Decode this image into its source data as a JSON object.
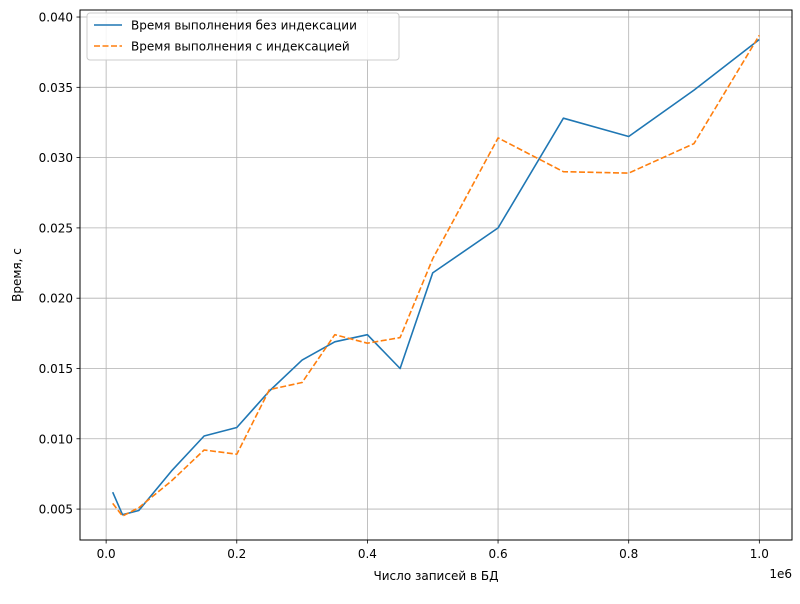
{
  "chart_data": {
    "type": "line",
    "title": "",
    "xlabel": "Число записей в БД",
    "ylabel": "Время, с",
    "x_offset_text": "1e6",
    "xlim": [
      -40000,
      1050000
    ],
    "ylim": [
      0.0028,
      0.0405
    ],
    "grid": true,
    "legend_position": "top-left",
    "x_ticks": [
      0.0,
      0.2,
      0.4,
      0.6,
      0.8,
      1.0
    ],
    "x_tick_labels": [
      "0.0",
      "0.2",
      "0.4",
      "0.6",
      "0.8",
      "1.0"
    ],
    "y_ticks": [
      0.005,
      0.01,
      0.015,
      0.02,
      0.025,
      0.03,
      0.035,
      0.04
    ],
    "y_tick_labels": [
      "0.005",
      "0.010",
      "0.015",
      "0.020",
      "0.025",
      "0.030",
      "0.035",
      "0.040"
    ],
    "x": [
      10000,
      25000,
      50000,
      100000,
      150000,
      200000,
      250000,
      300000,
      350000,
      400000,
      450000,
      500000,
      600000,
      700000,
      800000,
      900000,
      1000000
    ],
    "series": [
      {
        "name": "Время выполнения без индексации",
        "color": "#1f77b4",
        "dash": "solid",
        "values": [
          0.0062,
          0.0046,
          0.0049,
          0.0077,
          0.0102,
          0.0108,
          0.0134,
          0.0156,
          0.0169,
          0.0174,
          0.015,
          0.0218,
          0.025,
          0.0328,
          0.0315,
          0.0348,
          0.0384
        ]
      },
      {
        "name": "Время выполнения с индексацией",
        "color": "#ff7f0e",
        "dash": "dashed",
        "values": [
          0.0054,
          0.0045,
          0.0051,
          0.007,
          0.0092,
          0.0089,
          0.0135,
          0.014,
          0.0174,
          0.0168,
          0.0172,
          0.0228,
          0.0314,
          0.029,
          0.0289,
          0.031,
          0.0387
        ]
      }
    ]
  }
}
